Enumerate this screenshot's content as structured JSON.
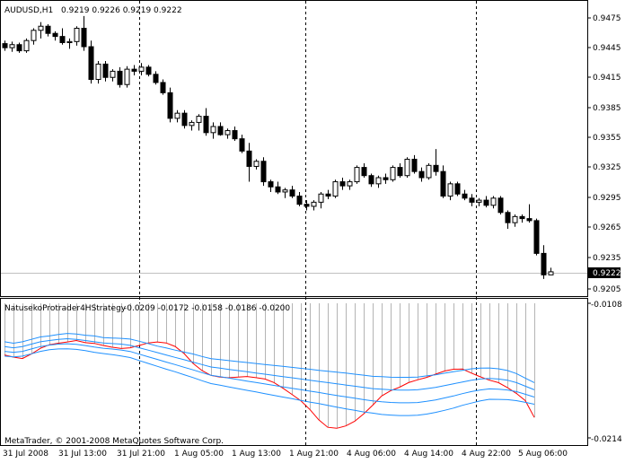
{
  "main_header": {
    "symbol": "AUDUSD,H1",
    "ohlc": "0.9219 0.9226 0.9219 0.9222"
  },
  "price_axis_labels": [
    "0.9475",
    "0.9445",
    "0.9415",
    "0.9385",
    "0.9355",
    "0.9325",
    "0.9295",
    "0.9265",
    "0.9235",
    "0.9205"
  ],
  "current_price": "0.9222",
  "indicator_header": {
    "name": "NatusekoProtrader4HStrategy",
    "values": "-0.0209 -0.0172 -0.0158 -0.0186 -0.0200"
  },
  "indicator_axis_labels": [
    "-0.0108",
    "-0.0214"
  ],
  "copyright": "MetaTrader, © 2001-2008 MetaQuotes Software Corp.",
  "time_axis_labels": [
    "31 Jul 2008",
    "31 Jul 13:00",
    "31 Jul 21:00",
    "1 Aug 05:00",
    "1 Aug 13:00",
    "1 Aug 21:00",
    "4 Aug 06:00",
    "4 Aug 14:00",
    "4 Aug 22:00",
    "5 Aug 06:00"
  ],
  "colors": {
    "bull_body": "#ffffff",
    "bear_body": "#000000",
    "signal_line": "#ff0000",
    "band_lines": "#1e90ff",
    "histogram": "#b4b4b4",
    "separator": "#000000",
    "bid_line": "#c0c0c0"
  },
  "chart_data": [
    {
      "type": "candlestick",
      "title": "AUDUSD,H1",
      "y_range": [
        0.92,
        0.9485
      ],
      "candles": [
        {
          "o": 0.9445,
          "h": 0.9448,
          "l": 0.9438,
          "c": 0.9441
        },
        {
          "o": 0.9441,
          "h": 0.9447,
          "l": 0.9437,
          "c": 0.9444
        },
        {
          "o": 0.9444,
          "h": 0.9446,
          "l": 0.9436,
          "c": 0.9438
        },
        {
          "o": 0.9438,
          "h": 0.945,
          "l": 0.9436,
          "c": 0.9448
        },
        {
          "o": 0.9448,
          "h": 0.946,
          "l": 0.9444,
          "c": 0.9458
        },
        {
          "o": 0.9458,
          "h": 0.9466,
          "l": 0.945,
          "c": 0.9462
        },
        {
          "o": 0.9462,
          "h": 0.9464,
          "l": 0.9452,
          "c": 0.9455
        },
        {
          "o": 0.9455,
          "h": 0.9457,
          "l": 0.9448,
          "c": 0.9452
        },
        {
          "o": 0.9452,
          "h": 0.946,
          "l": 0.9444,
          "c": 0.9446
        },
        {
          "o": 0.9446,
          "h": 0.945,
          "l": 0.944,
          "c": 0.9447
        },
        {
          "o": 0.9447,
          "h": 0.9462,
          "l": 0.9443,
          "c": 0.946
        },
        {
          "o": 0.946,
          "h": 0.9472,
          "l": 0.9438,
          "c": 0.9442
        },
        {
          "o": 0.9442,
          "h": 0.9448,
          "l": 0.9406,
          "c": 0.941
        },
        {
          "o": 0.941,
          "h": 0.9428,
          "l": 0.9406,
          "c": 0.9425
        },
        {
          "o": 0.9425,
          "h": 0.9428,
          "l": 0.9408,
          "c": 0.9412
        },
        {
          "o": 0.9412,
          "h": 0.942,
          "l": 0.9408,
          "c": 0.9418
        },
        {
          "o": 0.9418,
          "h": 0.9422,
          "l": 0.9402,
          "c": 0.9405
        },
        {
          "o": 0.9405,
          "h": 0.9423,
          "l": 0.9402,
          "c": 0.942
        },
        {
          "o": 0.942,
          "h": 0.9424,
          "l": 0.9414,
          "c": 0.9418
        },
        {
          "o": 0.9418,
          "h": 0.9426,
          "l": 0.9414,
          "c": 0.9422
        },
        {
          "o": 0.9422,
          "h": 0.9424,
          "l": 0.9413,
          "c": 0.9415
        },
        {
          "o": 0.9415,
          "h": 0.9418,
          "l": 0.9405,
          "c": 0.9407
        },
        {
          "o": 0.9407,
          "h": 0.941,
          "l": 0.9395,
          "c": 0.9397
        },
        {
          "o": 0.9397,
          "h": 0.9402,
          "l": 0.9368,
          "c": 0.9372
        },
        {
          "o": 0.9372,
          "h": 0.938,
          "l": 0.9368,
          "c": 0.9377
        },
        {
          "o": 0.9377,
          "h": 0.938,
          "l": 0.9362,
          "c": 0.9365
        },
        {
          "o": 0.9365,
          "h": 0.937,
          "l": 0.936,
          "c": 0.9368
        },
        {
          "o": 0.9368,
          "h": 0.9376,
          "l": 0.936,
          "c": 0.9374
        },
        {
          "o": 0.9374,
          "h": 0.9382,
          "l": 0.9355,
          "c": 0.9358
        },
        {
          "o": 0.9358,
          "h": 0.9368,
          "l": 0.9352,
          "c": 0.9364
        },
        {
          "o": 0.9364,
          "h": 0.9368,
          "l": 0.9355,
          "c": 0.9356
        },
        {
          "o": 0.9356,
          "h": 0.9362,
          "l": 0.9352,
          "c": 0.936
        },
        {
          "o": 0.936,
          "h": 0.9364,
          "l": 0.935,
          "c": 0.9352
        },
        {
          "o": 0.9352,
          "h": 0.9356,
          "l": 0.9338,
          "c": 0.934
        },
        {
          "o": 0.934,
          "h": 0.9348,
          "l": 0.931,
          "c": 0.9325
        },
        {
          "o": 0.9325,
          "h": 0.9332,
          "l": 0.9322,
          "c": 0.933
        },
        {
          "o": 0.933,
          "h": 0.9334,
          "l": 0.9306,
          "c": 0.931
        },
        {
          "o": 0.931,
          "h": 0.9312,
          "l": 0.93,
          "c": 0.9305
        },
        {
          "o": 0.9305,
          "h": 0.931,
          "l": 0.9298,
          "c": 0.93
        },
        {
          "o": 0.93,
          "h": 0.9304,
          "l": 0.9294,
          "c": 0.9302
        },
        {
          "o": 0.9302,
          "h": 0.9306,
          "l": 0.9294,
          "c": 0.9296
        },
        {
          "o": 0.9296,
          "h": 0.93,
          "l": 0.9286,
          "c": 0.9288
        },
        {
          "o": 0.9288,
          "h": 0.9292,
          "l": 0.9282,
          "c": 0.9286
        },
        {
          "o": 0.9286,
          "h": 0.9292,
          "l": 0.9282,
          "c": 0.929
        },
        {
          "o": 0.929,
          "h": 0.93,
          "l": 0.9284,
          "c": 0.9298
        },
        {
          "o": 0.9298,
          "h": 0.9302,
          "l": 0.9293,
          "c": 0.9296
        },
        {
          "o": 0.9296,
          "h": 0.9312,
          "l": 0.9294,
          "c": 0.931
        },
        {
          "o": 0.931,
          "h": 0.9314,
          "l": 0.9302,
          "c": 0.9306
        },
        {
          "o": 0.9306,
          "h": 0.9312,
          "l": 0.9302,
          "c": 0.931
        },
        {
          "o": 0.931,
          "h": 0.9326,
          "l": 0.9308,
          "c": 0.9324
        },
        {
          "o": 0.9324,
          "h": 0.9328,
          "l": 0.9314,
          "c": 0.9316
        },
        {
          "o": 0.9316,
          "h": 0.9318,
          "l": 0.9305,
          "c": 0.9308
        },
        {
          "o": 0.9308,
          "h": 0.9316,
          "l": 0.9304,
          "c": 0.9314
        },
        {
          "o": 0.9314,
          "h": 0.9318,
          "l": 0.9308,
          "c": 0.9312
        },
        {
          "o": 0.9312,
          "h": 0.9326,
          "l": 0.931,
          "c": 0.9324
        },
        {
          "o": 0.9324,
          "h": 0.9328,
          "l": 0.9314,
          "c": 0.9316
        },
        {
          "o": 0.9316,
          "h": 0.9334,
          "l": 0.9314,
          "c": 0.9332
        },
        {
          "o": 0.9332,
          "h": 0.9336,
          "l": 0.9318,
          "c": 0.932
        },
        {
          "o": 0.932,
          "h": 0.9324,
          "l": 0.931,
          "c": 0.9314
        },
        {
          "o": 0.9314,
          "h": 0.9328,
          "l": 0.9312,
          "c": 0.9326
        },
        {
          "o": 0.9326,
          "h": 0.9342,
          "l": 0.9316,
          "c": 0.932
        },
        {
          "o": 0.932,
          "h": 0.9326,
          "l": 0.9294,
          "c": 0.9296
        },
        {
          "o": 0.9296,
          "h": 0.931,
          "l": 0.9292,
          "c": 0.9308
        },
        {
          "o": 0.9308,
          "h": 0.931,
          "l": 0.9296,
          "c": 0.9298
        },
        {
          "o": 0.9298,
          "h": 0.9302,
          "l": 0.9292,
          "c": 0.9294
        },
        {
          "o": 0.9294,
          "h": 0.9298,
          "l": 0.9286,
          "c": 0.929
        },
        {
          "o": 0.929,
          "h": 0.9294,
          "l": 0.9286,
          "c": 0.9292
        },
        {
          "o": 0.9292,
          "h": 0.9296,
          "l": 0.9285,
          "c": 0.9287
        },
        {
          "o": 0.9287,
          "h": 0.9296,
          "l": 0.9284,
          "c": 0.9294
        },
        {
          "o": 0.9294,
          "h": 0.9296,
          "l": 0.9278,
          "c": 0.928
        },
        {
          "o": 0.928,
          "h": 0.9282,
          "l": 0.9264,
          "c": 0.927
        },
        {
          "o": 0.927,
          "h": 0.9278,
          "l": 0.9266,
          "c": 0.9276
        },
        {
          "o": 0.9276,
          "h": 0.9278,
          "l": 0.927,
          "c": 0.9274
        },
        {
          "o": 0.9274,
          "h": 0.9288,
          "l": 0.927,
          "c": 0.9272
        },
        {
          "o": 0.9272,
          "h": 0.9274,
          "l": 0.9238,
          "c": 0.924
        },
        {
          "o": 0.924,
          "h": 0.9248,
          "l": 0.9215,
          "c": 0.9219
        },
        {
          "o": 0.9219,
          "h": 0.9226,
          "l": 0.9219,
          "c": 0.9222
        }
      ]
    },
    {
      "type": "line",
      "title": "NatusekoProtrader4HStrategy",
      "y_range": [
        -0.0218,
        -0.0106
      ],
      "series": [
        {
          "values": [
            -0.0149,
            -0.01508,
            -0.0152,
            -0.01482,
            -0.01435,
            -0.01405,
            -0.01392,
            -0.01382,
            -0.0137,
            -0.01388,
            -0.01394,
            -0.01411,
            -0.01426,
            -0.01436,
            -0.0143,
            -0.01411,
            -0.0139,
            -0.01382,
            -0.0139,
            -0.01419,
            -0.01478,
            -0.0156,
            -0.0162,
            -0.0166,
            -0.01674,
            -0.0168,
            -0.01674,
            -0.01669,
            -0.01679,
            -0.0169,
            -0.01719,
            -0.01766,
            -0.01818,
            -0.01871,
            -0.01943,
            -0.0203,
            -0.02092,
            -0.021,
            -0.02081,
            -0.02042,
            -0.0198,
            -0.01908,
            -0.01831,
            -0.01787,
            -0.01758,
            -0.0172,
            -0.01697,
            -0.01677,
            -0.0165,
            -0.01624,
            -0.01609,
            -0.01607,
            -0.01641,
            -0.01672,
            -0.017,
            -0.0172,
            -0.01761,
            -0.0181,
            -0.0187,
            -0.0201
          ]
        },
        {
          "values": [
            -0.0142,
            -0.0143,
            -0.0142,
            -0.014,
            -0.0138,
            -0.0137,
            -0.0136,
            -0.01355,
            -0.0136,
            -0.0137,
            -0.0138,
            -0.0139,
            -0.01395,
            -0.014,
            -0.0141,
            -0.0143,
            -0.0145,
            -0.0147,
            -0.0149,
            -0.0151,
            -0.0153,
            -0.0155,
            -0.0157,
            -0.0159,
            -0.016,
            -0.0161,
            -0.0162,
            -0.0163,
            -0.0164,
            -0.0165,
            -0.0166,
            -0.0167,
            -0.0168,
            -0.0169,
            -0.017,
            -0.0171,
            -0.0172,
            -0.0173,
            -0.0174,
            -0.0175,
            -0.0176,
            -0.0177,
            -0.01775,
            -0.0178,
            -0.01782,
            -0.01782,
            -0.0178,
            -0.0177,
            -0.0176,
            -0.01745,
            -0.0173,
            -0.01715,
            -0.017,
            -0.0169,
            -0.01685,
            -0.0169,
            -0.017,
            -0.0172,
            -0.0175,
            -0.0178
          ]
        },
        {
          "values": [
            -0.0146,
            -0.01468,
            -0.0146,
            -0.0144,
            -0.0142,
            -0.01408,
            -0.014,
            -0.01397,
            -0.01402,
            -0.01412,
            -0.01424,
            -0.01434,
            -0.01441,
            -0.01449,
            -0.01461,
            -0.01483,
            -0.01505,
            -0.01527,
            -0.01549,
            -0.0157,
            -0.01592,
            -0.01614,
            -0.01637,
            -0.01659,
            -0.01671,
            -0.01683,
            -0.01695,
            -0.01707,
            -0.01719,
            -0.01731,
            -0.01743,
            -0.01755,
            -0.01767,
            -0.01779,
            -0.01791,
            -0.01802,
            -0.01815,
            -0.01827,
            -0.01839,
            -0.0185,
            -0.01862,
            -0.01872,
            -0.0188,
            -0.01885,
            -0.01888,
            -0.01888,
            -0.01886,
            -0.01876,
            -0.01864,
            -0.01848,
            -0.01831,
            -0.01812,
            -0.01795,
            -0.01781,
            -0.01772,
            -0.01775,
            -0.01781,
            -0.01795,
            -0.01817,
            -0.0184
          ]
        },
        {
          "values": [
            -0.015,
            -0.01506,
            -0.015,
            -0.0148,
            -0.0146,
            -0.01446,
            -0.0144,
            -0.01439,
            -0.01444,
            -0.01454,
            -0.01468,
            -0.01478,
            -0.01487,
            -0.01498,
            -0.01512,
            -0.01536,
            -0.0156,
            -0.01584,
            -0.01608,
            -0.0163,
            -0.01654,
            -0.01678,
            -0.01704,
            -0.01728,
            -0.01742,
            -0.01756,
            -0.0177,
            -0.01784,
            -0.01798,
            -0.01812,
            -0.01826,
            -0.0184,
            -0.01854,
            -0.01868,
            -0.01882,
            -0.01894,
            -0.0191,
            -0.01924,
            -0.01938,
            -0.0195,
            -0.01964,
            -0.01974,
            -0.01985,
            -0.0199,
            -0.01994,
            -0.01994,
            -0.01992,
            -0.01982,
            -0.01968,
            -0.01951,
            -0.01932,
            -0.01909,
            -0.0189,
            -0.01872,
            -0.01859,
            -0.0186,
            -0.01862,
            -0.0187,
            -0.01884,
            -0.019
          ]
        },
        {
          "values": [
            -0.0138,
            -0.01392,
            -0.0138,
            -0.0136,
            -0.0134,
            -0.01332,
            -0.0132,
            -0.01311,
            -0.01316,
            -0.01326,
            -0.01332,
            -0.01346,
            -0.01349,
            -0.01352,
            -0.01358,
            -0.01376,
            -0.01395,
            -0.01416,
            -0.01432,
            -0.0145,
            -0.01466,
            -0.01482,
            -0.01503,
            -0.01521,
            -0.01529,
            -0.01537,
            -0.01545,
            -0.01553,
            -0.01561,
            -0.01569,
            -0.01577,
            -0.01585,
            -0.01593,
            -0.01601,
            -0.01609,
            -0.01618,
            -0.01625,
            -0.01633,
            -0.01641,
            -0.0165,
            -0.01658,
            -0.01668,
            -0.0167,
            -0.01675,
            -0.01676,
            -0.01676,
            -0.01674,
            -0.01664,
            -0.01656,
            -0.01642,
            -0.01629,
            -0.01618,
            -0.01605,
            -0.01599,
            -0.01598,
            -0.01605,
            -0.01619,
            -0.01645,
            -0.01683,
            -0.0172
          ]
        }
      ]
    }
  ]
}
